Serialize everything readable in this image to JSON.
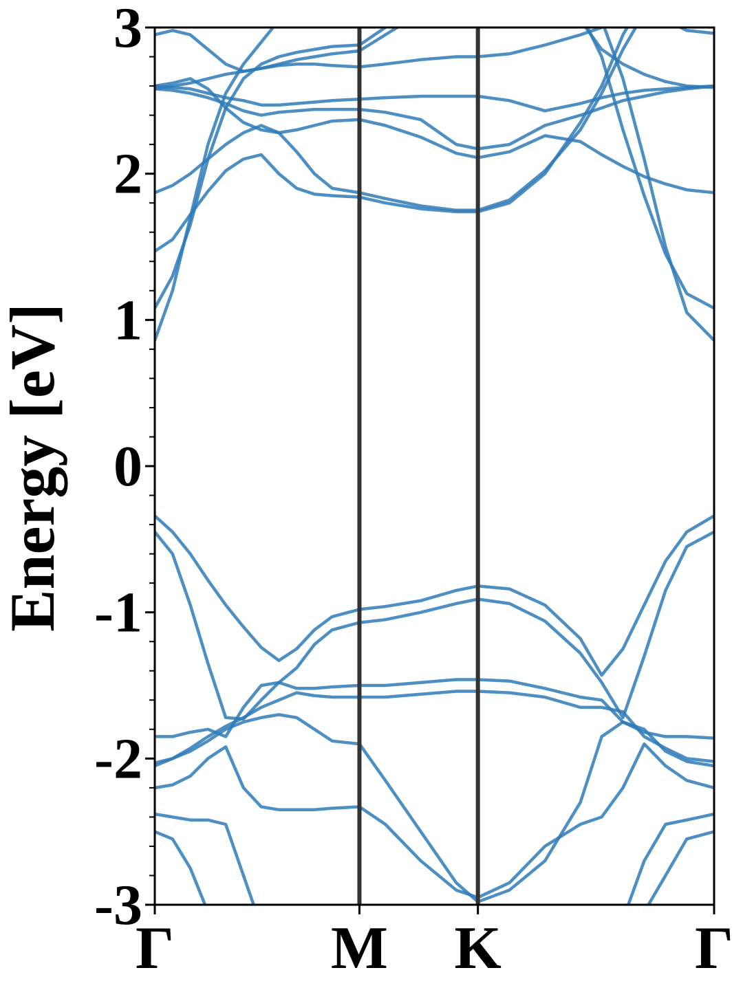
{
  "chart_data": {
    "type": "line",
    "y_label": "Energy [eV]",
    "color": "#2e7ab8",
    "x": [
      0,
      0.05,
      0.1,
      0.15,
      0.2,
      0.25,
      0.3,
      0.35,
      0.4,
      0.45,
      0.5,
      0.577,
      0.65,
      0.75,
      0.85,
      0.911,
      1.0,
      1.1,
      1.2,
      1.26,
      1.32,
      1.38,
      1.44,
      1.5,
      1.577
    ],
    "xlim": [
      0,
      1.577
    ],
    "xticks": [
      {
        "value": 0,
        "label": "Γ"
      },
      {
        "value": 0.577,
        "label": "M"
      },
      {
        "value": 0.911,
        "label": "K"
      },
      {
        "value": 1.577,
        "label": "Γ"
      }
    ],
    "ylim": [
      -3,
      3
    ],
    "yticks": [
      -3,
      -2,
      -1,
      0,
      1,
      2,
      3
    ],
    "yminorticks": [
      -2.8,
      -2.6,
      -2.4,
      -2.2,
      -1.8,
      -1.6,
      -1.4,
      -1.2,
      -0.8,
      -0.6,
      -0.4,
      -0.2,
      0.2,
      0.4,
      0.6,
      0.8,
      1.2,
      1.4,
      1.6,
      1.8,
      2.2,
      2.4,
      2.6,
      2.8
    ],
    "series": [
      {
        "values": [
          -0.34,
          -0.45,
          -0.6,
          -0.78,
          -0.95,
          -1.1,
          -1.24,
          -1.33,
          -1.25,
          -1.12,
          -1.03,
          -0.98,
          -0.96,
          -0.92,
          -0.85,
          -0.82,
          -0.84,
          -0.95,
          -1.18,
          -1.43,
          -1.25,
          -0.95,
          -0.65,
          -0.45,
          -0.34
        ]
      },
      {
        "values": [
          -0.45,
          -0.6,
          -0.95,
          -1.35,
          -1.72,
          -1.73,
          -1.6,
          -1.48,
          -1.38,
          -1.22,
          -1.12,
          -1.07,
          -1.05,
          -1.0,
          -0.94,
          -0.91,
          -0.94,
          -1.06,
          -1.28,
          -1.48,
          -1.72,
          -1.3,
          -0.85,
          -0.55,
          -0.45
        ]
      },
      {
        "values": [
          -1.85,
          -1.85,
          -1.82,
          -1.8,
          -1.85,
          -1.65,
          -1.5,
          -1.48,
          -1.52,
          -1.52,
          -1.51,
          -1.5,
          -1.5,
          -1.48,
          -1.46,
          -1.46,
          -1.47,
          -1.52,
          -1.58,
          -1.6,
          -1.75,
          -1.82,
          -1.85,
          -1.85,
          -1.86
        ]
      },
      {
        "values": [
          -2.03,
          -2.0,
          -1.93,
          -1.85,
          -1.78,
          -1.72,
          -1.65,
          -1.6,
          -1.55,
          -1.57,
          -1.58,
          -1.58,
          -1.58,
          -1.56,
          -1.54,
          -1.54,
          -1.55,
          -1.58,
          -1.65,
          -1.65,
          -1.68,
          -1.85,
          -1.93,
          -2.0,
          -2.02
        ]
      },
      {
        "values": [
          -2.05,
          -2.0,
          -1.95,
          -1.88,
          -1.8,
          -1.75,
          -1.72,
          -1.7,
          -1.72,
          -1.8,
          -1.88,
          -1.9,
          -2.15,
          -2.5,
          -2.85,
          -2.98,
          -2.9,
          -2.7,
          -2.3,
          -1.85,
          -1.75,
          -1.8,
          -1.95,
          -2.02,
          -2.05
        ]
      },
      {
        "values": [
          -2.2,
          -2.18,
          -2.12,
          -2.0,
          -1.92,
          -2.2,
          -2.33,
          -2.35,
          -2.35,
          -2.35,
          -2.34,
          -2.33,
          -2.45,
          -2.7,
          -2.9,
          -2.95,
          -2.85,
          -2.6,
          -2.45,
          -2.4,
          -2.2,
          -1.9,
          -2.05,
          -2.15,
          -2.2
        ]
      },
      {
        "values": [
          -2.38,
          -2.4,
          -2.42,
          -2.42,
          -2.45,
          -2.8,
          -3.15,
          null,
          null,
          null,
          null,
          null,
          null,
          null,
          null,
          null,
          null,
          null,
          null,
          null,
          -3.1,
          -2.7,
          -2.45,
          -2.42,
          -2.38
        ]
      },
      {
        "values": [
          -2.5,
          -2.55,
          -2.75,
          -3.05,
          null,
          null,
          null,
          null,
          null,
          null,
          null,
          null,
          null,
          null,
          null,
          null,
          null,
          null,
          null,
          null,
          null,
          -3.05,
          -2.8,
          -2.55,
          -2.5
        ]
      },
      {
        "values": [
          0.86,
          1.2,
          1.7,
          2.2,
          2.55,
          2.75,
          2.9,
          3.05,
          null,
          null,
          null,
          null,
          null,
          null,
          null,
          null,
          null,
          null,
          null,
          3.05,
          2.65,
          2.1,
          1.5,
          1.05,
          0.86
        ]
      },
      {
        "values": [
          1.08,
          1.3,
          1.65,
          2.1,
          2.45,
          2.65,
          2.75,
          2.8,
          2.83,
          2.85,
          2.87,
          2.88,
          3.0,
          null,
          null,
          null,
          null,
          null,
          3.1,
          2.8,
          2.3,
          1.85,
          1.45,
          1.18,
          1.08
        ]
      },
      {
        "values": [
          1.47,
          1.55,
          1.72,
          1.88,
          2.02,
          2.1,
          2.13,
          2.0,
          1.9,
          1.86,
          1.85,
          1.84,
          1.8,
          1.76,
          1.74,
          1.74,
          1.8,
          2.0,
          2.35,
          2.6,
          2.95,
          3.2,
          null,
          null,
          null
        ]
      },
      {
        "values": [
          1.87,
          1.92,
          2.0,
          2.1,
          2.2,
          2.28,
          2.33,
          2.28,
          2.15,
          2.0,
          1.9,
          1.87,
          1.83,
          1.78,
          1.75,
          1.75,
          1.82,
          2.02,
          2.3,
          2.55,
          2.85,
          3.1,
          null,
          null,
          null
        ]
      },
      {
        "values": [
          2.6,
          2.62,
          2.65,
          2.58,
          2.45,
          2.35,
          2.3,
          2.28,
          2.3,
          2.33,
          2.36,
          2.37,
          2.33,
          2.25,
          2.14,
          2.11,
          2.15,
          2.26,
          2.22,
          2.13,
          2.05,
          1.98,
          1.93,
          1.89,
          1.87
        ]
      },
      {
        "values": [
          2.58,
          2.57,
          2.55,
          2.52,
          2.48,
          2.43,
          2.4,
          2.42,
          2.43,
          2.44,
          2.44,
          2.44,
          2.42,
          2.37,
          2.2,
          2.17,
          2.2,
          2.33,
          2.4,
          2.45,
          2.5,
          2.53,
          2.56,
          2.58,
          2.6
        ]
      },
      {
        "values": [
          2.6,
          2.59,
          2.58,
          2.55,
          2.52,
          2.5,
          2.47,
          2.47,
          2.48,
          2.49,
          2.5,
          2.51,
          2.52,
          2.53,
          2.53,
          2.53,
          2.5,
          2.43,
          2.48,
          2.52,
          2.55,
          2.57,
          2.58,
          2.59,
          2.6
        ]
      },
      {
        "values": [
          2.95,
          2.98,
          2.95,
          2.85,
          2.75,
          2.7,
          2.72,
          2.74,
          2.75,
          2.75,
          2.74,
          2.73,
          2.75,
          2.78,
          2.8,
          2.8,
          2.82,
          2.88,
          2.95,
          3.0,
          null,
          null,
          3.05,
          2.98,
          2.96
        ]
      },
      {
        "values": [
          2.58,
          2.6,
          2.62,
          2.65,
          2.68,
          2.7,
          2.72,
          2.75,
          2.78,
          2.8,
          2.82,
          2.84,
          2.95,
          3.1,
          null,
          null,
          null,
          null,
          3.05,
          2.85,
          2.75,
          2.68,
          2.63,
          2.6,
          2.59
        ]
      }
    ]
  }
}
